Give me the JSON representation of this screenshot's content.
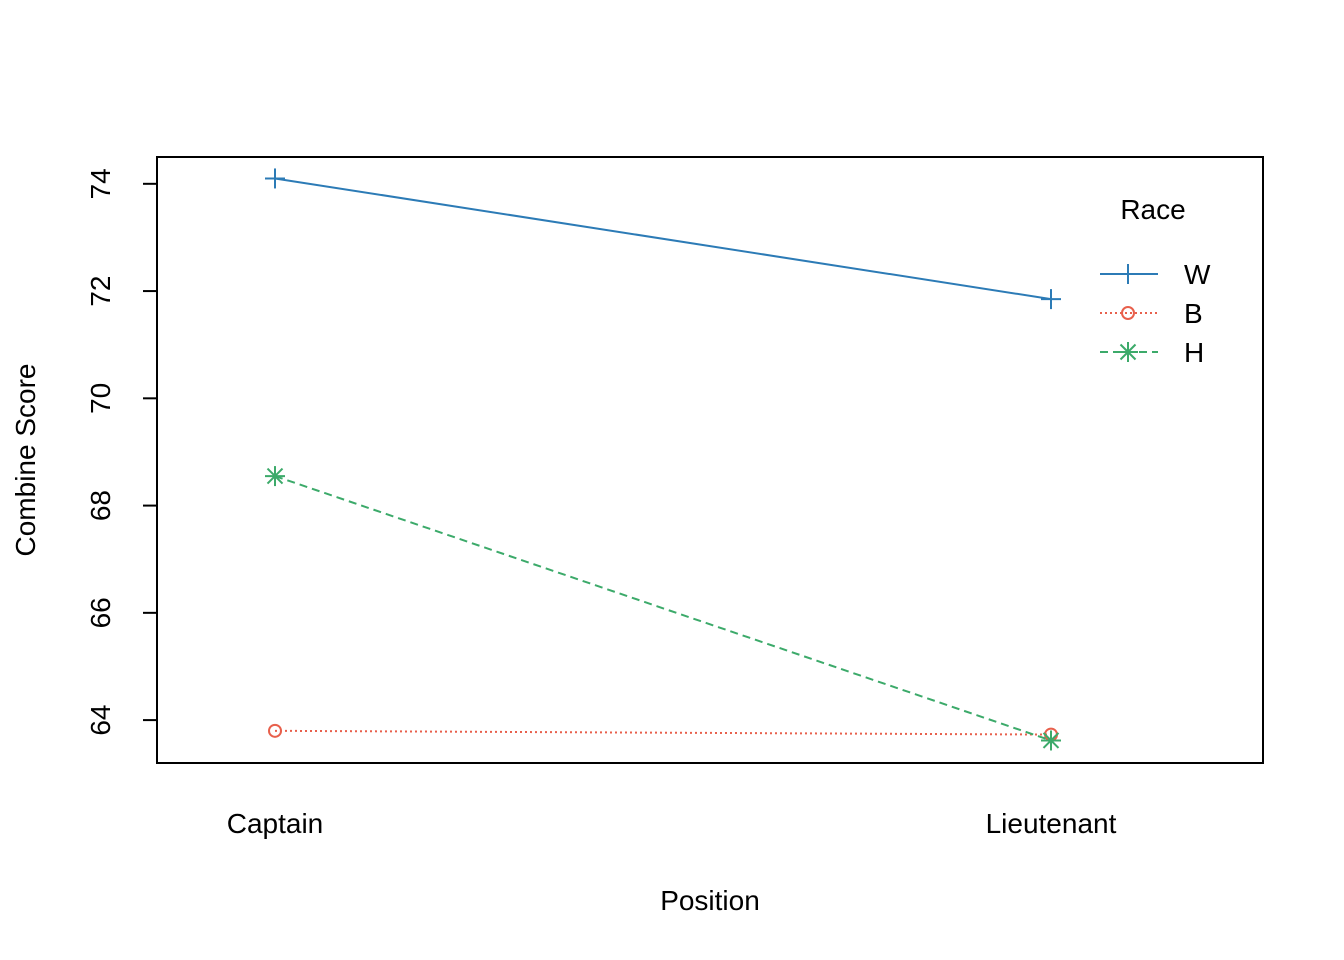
{
  "chart_data": {
    "type": "line",
    "title": "",
    "xlabel": "Position",
    "ylabel": "Combine Score",
    "categories": [
      "Captain",
      "Lieutenant"
    ],
    "ylim": [
      63.2,
      74.5
    ],
    "yticks": [
      64,
      66,
      68,
      70,
      72,
      74
    ],
    "grid": false,
    "legend": {
      "title": "Race",
      "placement": "top-right"
    },
    "series": [
      {
        "name": "W",
        "values": [
          74.1,
          71.85
        ],
        "color": "#2C7BB6",
        "marker": "plus",
        "line_style": "solid"
      },
      {
        "name": "B",
        "values": [
          63.8,
          63.73
        ],
        "color": "#E8604C",
        "marker": "circle",
        "line_style": "dotted"
      },
      {
        "name": "H",
        "values": [
          68.55,
          63.62
        ],
        "color": "#3CAA6A",
        "marker": "asterisk",
        "line_style": "dashed"
      }
    ]
  }
}
